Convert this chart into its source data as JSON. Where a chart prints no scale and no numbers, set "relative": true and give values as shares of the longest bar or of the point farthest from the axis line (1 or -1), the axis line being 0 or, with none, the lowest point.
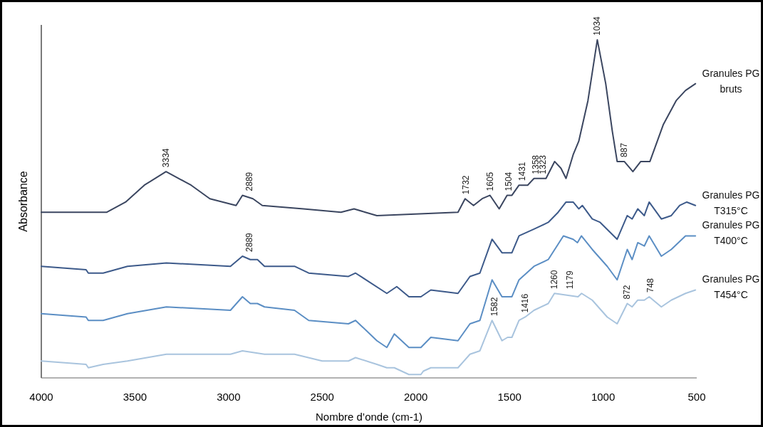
{
  "chart_data": {
    "type": "line",
    "relative": true,
    "xlabel": "Nombre d’onde (cm-1)",
    "ylabel": "Absorbance",
    "xlim": [
      4000,
      500
    ],
    "xticks": [
      4000,
      3500,
      3000,
      2500,
      2000,
      1500,
      1000,
      500
    ],
    "grid": false,
    "legend": false,
    "marker": "none",
    "line_style": "solid",
    "tick_labels": "x",
    "series": [
      {
        "name": "Granules PG bruts",
        "color": "#3b4660",
        "x": [
          4000,
          3800,
          3650,
          3550,
          3450,
          3334,
          3200,
          3100,
          2960,
          2926,
          2870,
          2820,
          2600,
          2400,
          2330,
          2270,
          2208,
          1775,
          1737,
          1692,
          1646,
          1604,
          1555,
          1513,
          1487,
          1449,
          1403,
          1369,
          1305,
          1259,
          1225,
          1198,
          1160,
          1130,
          1081,
          1031,
          986,
          951,
          925,
          887,
          841,
          799,
          750,
          678,
          610,
          560,
          507
        ],
        "values": [
          0.49,
          0.49,
          0.49,
          0.52,
          0.57,
          0.61,
          0.57,
          0.53,
          0.51,
          0.54,
          0.53,
          0.51,
          0.5,
          0.49,
          0.5,
          0.49,
          0.48,
          0.49,
          0.53,
          0.51,
          0.53,
          0.54,
          0.5,
          0.54,
          0.54,
          0.57,
          0.57,
          0.59,
          0.59,
          0.64,
          0.62,
          0.59,
          0.66,
          0.7,
          0.82,
          1.0,
          0.87,
          0.73,
          0.64,
          0.64,
          0.61,
          0.64,
          0.64,
          0.75,
          0.82,
          0.85,
          0.87
        ]
      },
      {
        "name": "Granules PG T315°C",
        "color": "#3d5a8a",
        "x": [
          4000,
          3761,
          3749,
          3670,
          3540,
          3332,
          2990,
          2926,
          2884,
          2846,
          2808,
          2648,
          2572,
          2360,
          2322,
          2155,
          2102,
          2037,
          1973,
          1920,
          1775,
          1711,
          1658,
          1593,
          1540,
          1487,
          1449,
          1369,
          1293,
          1240,
          1198,
          1160,
          1130,
          1111,
          1058,
          1016,
          925,
          871,
          845,
          815,
          780,
          754,
          689,
          636,
          591,
          553,
          507
        ],
        "values": [
          0.33,
          0.32,
          0.31,
          0.31,
          0.33,
          0.34,
          0.33,
          0.36,
          0.35,
          0.35,
          0.33,
          0.33,
          0.31,
          0.3,
          0.31,
          0.25,
          0.27,
          0.24,
          0.24,
          0.26,
          0.25,
          0.3,
          0.31,
          0.41,
          0.37,
          0.37,
          0.42,
          0.44,
          0.46,
          0.49,
          0.52,
          0.52,
          0.5,
          0.51,
          0.47,
          0.46,
          0.41,
          0.48,
          0.47,
          0.5,
          0.48,
          0.52,
          0.47,
          0.48,
          0.51,
          0.52,
          0.51
        ]
      },
      {
        "name": "Granules PG T400°C",
        "color": "#5b8ec4",
        "x": [
          4000,
          3761,
          3749,
          3700,
          3670,
          3540,
          3332,
          2990,
          2926,
          2884,
          2846,
          2808,
          2648,
          2572,
          2360,
          2322,
          2208,
          2155,
          2115,
          2037,
          1973,
          1920,
          1775,
          1711,
          1658,
          1593,
          1540,
          1487,
          1449,
          1369,
          1293,
          1212,
          1160,
          1137,
          1116,
          1058,
          978,
          925,
          871,
          845,
          815,
          780,
          754,
          689,
          636,
          560,
          507
        ],
        "values": [
          0.19,
          0.18,
          0.17,
          0.17,
          0.17,
          0.19,
          0.21,
          0.2,
          0.24,
          0.22,
          0.22,
          0.21,
          0.2,
          0.17,
          0.16,
          0.17,
          0.11,
          0.09,
          0.13,
          0.09,
          0.09,
          0.12,
          0.11,
          0.16,
          0.17,
          0.29,
          0.24,
          0.24,
          0.29,
          0.33,
          0.35,
          0.42,
          0.41,
          0.4,
          0.42,
          0.38,
          0.33,
          0.29,
          0.38,
          0.35,
          0.4,
          0.39,
          0.42,
          0.36,
          0.38,
          0.42,
          0.42
        ]
      },
      {
        "name": "Granules PG T454°C",
        "color": "#a9c4de",
        "x": [
          4000,
          3761,
          3749,
          3670,
          3540,
          3332,
          2990,
          2926,
          2808,
          2648,
          2500,
          2360,
          2322,
          2208,
          2155,
          2115,
          2037,
          1973,
          1960,
          1920,
          1775,
          1711,
          1658,
          1593,
          1540,
          1510,
          1487,
          1449,
          1416,
          1369,
          1293,
          1260,
          1134,
          1115,
          1058,
          978,
          925,
          871,
          845,
          815,
          780,
          754,
          689,
          636,
          560,
          507
        ],
        "values": [
          0.05,
          0.04,
          0.03,
          0.04,
          0.05,
          0.07,
          0.07,
          0.08,
          0.07,
          0.07,
          0.05,
          0.05,
          0.06,
          0.04,
          0.03,
          0.03,
          0.01,
          0.01,
          0.02,
          0.03,
          0.03,
          0.07,
          0.08,
          0.17,
          0.11,
          0.12,
          0.12,
          0.17,
          0.18,
          0.2,
          0.22,
          0.25,
          0.24,
          0.25,
          0.23,
          0.18,
          0.16,
          0.22,
          0.21,
          0.23,
          0.23,
          0.24,
          0.21,
          0.23,
          0.25,
          0.26
        ]
      }
    ],
    "annotations": [
      {
        "text": "3334",
        "x": 3334,
        "y": 0.61
      },
      {
        "text": "2889",
        "x": 2889,
        "y": 0.54
      },
      {
        "text": "1732",
        "x": 1732,
        "y": 0.53
      },
      {
        "text": "1605",
        "x": 1605,
        "y": 0.54
      },
      {
        "text": "1504",
        "x": 1504,
        "y": 0.54
      },
      {
        "text": "1431",
        "x": 1431,
        "y": 0.57
      },
      {
        "text": "1358",
        "x": 1358,
        "y": 0.59
      },
      {
        "text": "1323",
        "x": 1323,
        "y": 0.59
      },
      {
        "text": "1034",
        "x": 1034,
        "y": 1.0
      },
      {
        "text": "887",
        "x": 887,
        "y": 0.64
      },
      {
        "text": "2889",
        "x": 2889,
        "y": 0.36
      },
      {
        "text": "1582",
        "x": 1582,
        "y": 0.17
      },
      {
        "text": "1416",
        "x": 1416,
        "y": 0.18
      },
      {
        "text": "1260",
        "x": 1260,
        "y": 0.25
      },
      {
        "text": "1179",
        "x": 1179,
        "y": 0.25
      },
      {
        "text": "872",
        "x": 872,
        "y": 0.22
      },
      {
        "text": "748",
        "x": 748,
        "y": 0.24
      }
    ]
  }
}
